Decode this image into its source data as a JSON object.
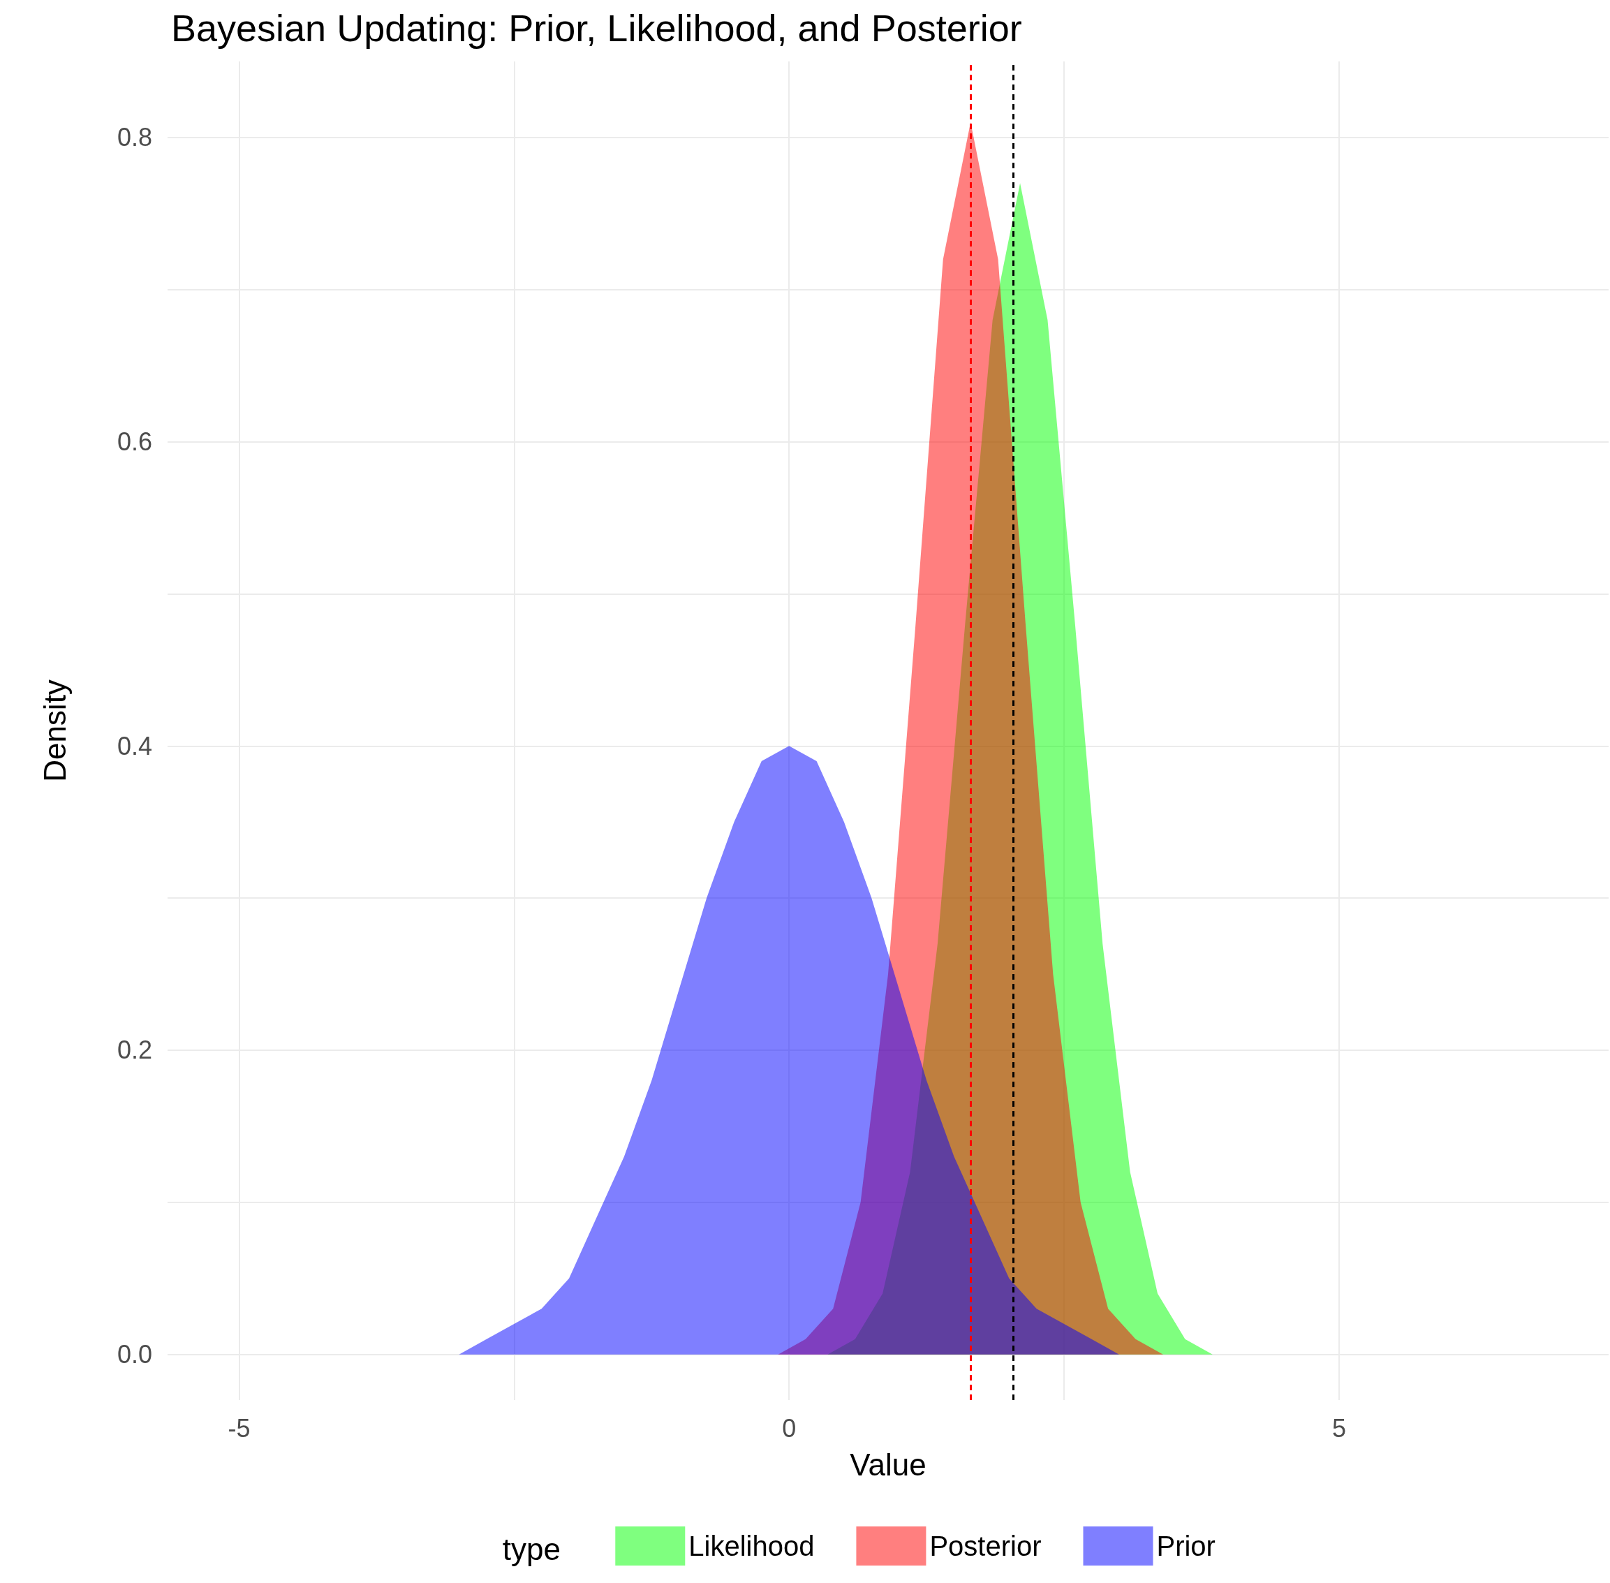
{
  "chart_data": {
    "type": "area",
    "title": "Bayesian Updating: Prior, Likelihood, and Posterior",
    "xlabel": "Value",
    "ylabel": "Density",
    "legend_title": "type",
    "legend": "bottom",
    "grid": true,
    "xlim": [
      -5.65,
      7.45
    ],
    "ylim": [
      -0.03,
      0.85
    ],
    "xticks": [
      -5,
      {
        "value": -2.5,
        "label": null
      },
      0,
      {
        "value": 2.5,
        "label": null
      },
      5
    ],
    "yticks": [
      {
        "value": 0,
        "label": "0.0"
      },
      {
        "value": 0.1,
        "label": null
      },
      0.2,
      {
        "value": 0.3,
        "label": null
      },
      0.4,
      {
        "value": 0.5,
        "label": null
      },
      0.6,
      {
        "value": 0.7,
        "label": null
      },
      0.8
    ],
    "series": [
      {
        "name": "Likelihood",
        "color": "#00ff00",
        "x": [
          0.1,
          0.35,
          0.6,
          0.85,
          1.1,
          1.35,
          1.6,
          1.85,
          2.1,
          2.35,
          2.6,
          2.85,
          3.1,
          3.35,
          3.6,
          3.85,
          4.1
        ],
        "values": [
          0,
          0,
          0.01,
          0.04,
          0.12,
          0.27,
          0.48,
          0.68,
          0.77,
          0.68,
          0.48,
          0.27,
          0.12,
          0.04,
          0.01,
          0,
          0
        ]
      },
      {
        "name": "Posterior",
        "color": "#ff0000",
        "x": [
          -0.1,
          0.15,
          0.4,
          0.65,
          0.9,
          1.15,
          1.4,
          1.65,
          1.9,
          2.15,
          2.4,
          2.65,
          2.9,
          3.15,
          3.4
        ],
        "values": [
          0,
          0.01,
          0.03,
          0.1,
          0.25,
          0.48,
          0.72,
          0.81,
          0.72,
          0.48,
          0.25,
          0.1,
          0.03,
          0.01,
          0
        ]
      },
      {
        "name": "Prior",
        "color": "#0000ff",
        "x": [
          -3.5,
          -3.25,
          -3,
          -2.75,
          -2.5,
          -2.25,
          -2,
          -1.75,
          -1.5,
          -1.25,
          -1,
          -0.75,
          -0.5,
          -0.25,
          0,
          0.25,
          0.5,
          0.75,
          1,
          1.25,
          1.5,
          1.75,
          2,
          2.25,
          2.5,
          2.75,
          3,
          3.25,
          3.5
        ],
        "values": [
          0,
          0,
          0,
          0.01,
          0.02,
          0.03,
          0.05,
          0.09,
          0.13,
          0.18,
          0.24,
          0.3,
          0.35,
          0.39,
          0.4,
          0.39,
          0.35,
          0.3,
          0.24,
          0.18,
          0.13,
          0.09,
          0.05,
          0.03,
          0.02,
          0.01,
          0,
          0,
          0
        ]
      }
    ],
    "ref_lines": [
      {
        "axis": "x",
        "value": 1.65,
        "color": "#ff0000",
        "line_style": "dashed"
      },
      {
        "axis": "x",
        "value": 2.04,
        "color": "#000000",
        "line_style": "dashed"
      }
    ]
  }
}
